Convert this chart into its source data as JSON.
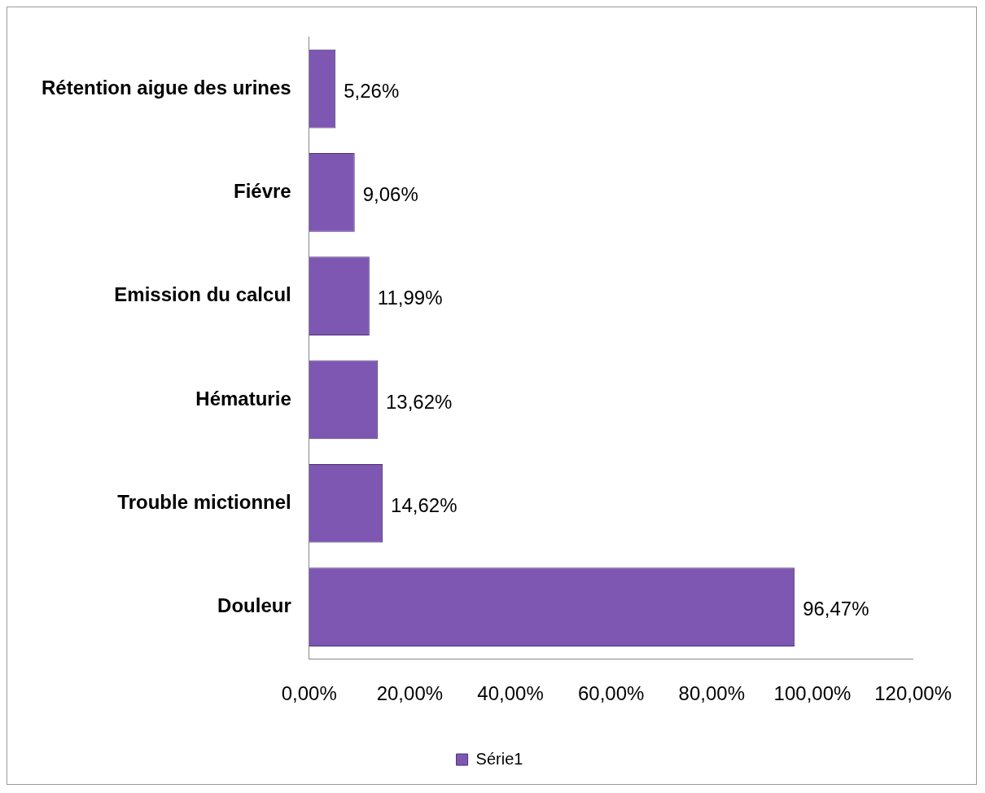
{
  "chart_data": {
    "type": "bar",
    "orientation": "horizontal",
    "categories": [
      "Rétention aigue des urines",
      "Fiévre",
      "Emission du calcul",
      "Hématurie",
      "Trouble mictionnel",
      "Douleur"
    ],
    "series": [
      {
        "name": "Série1",
        "color": "#7e57b3",
        "values": [
          5.26,
          9.06,
          11.99,
          13.62,
          14.62,
          96.47
        ],
        "value_labels": [
          "5,26%",
          "9,06%",
          "11,99%",
          "13,62%",
          "14,62%",
          "96,47%"
        ]
      }
    ],
    "xlim": [
      0,
      120
    ],
    "xticks": [
      {
        "value": 0,
        "label": "0,00%"
      },
      {
        "value": 20,
        "label": "20,00%"
      },
      {
        "value": 40,
        "label": "40,00%"
      },
      {
        "value": 60,
        "label": "60,00%"
      },
      {
        "value": 80,
        "label": "80,00%"
      },
      {
        "value": 100,
        "label": "100,00%"
      },
      {
        "value": 120,
        "label": "120,00%"
      }
    ],
    "grid": false,
    "legend": "bottom"
  }
}
